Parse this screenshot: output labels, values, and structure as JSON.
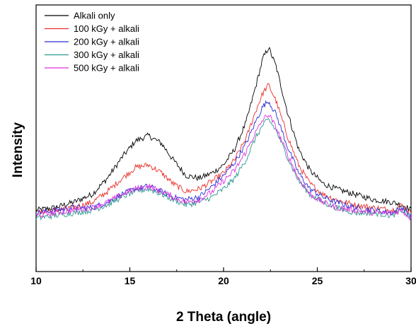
{
  "chart_data": {
    "type": "line",
    "title": "",
    "xlabel": "2 Theta (angle)",
    "ylabel": "Intensity",
    "xlim": [
      10,
      30
    ],
    "ylim": [
      0,
      100
    ],
    "x_ticks": [
      "10",
      "15",
      "20",
      "25",
      "30"
    ],
    "grid": false,
    "legend_position": "top-left",
    "series": [
      {
        "name": "Alkali only",
        "color": "#000000",
        "x": [
          10,
          11,
          12,
          13,
          13.8,
          14.6,
          15.3,
          16,
          16.7,
          17.3,
          18,
          18.7,
          19.4,
          20,
          20.6,
          21.2,
          21.7,
          22.1,
          22.4,
          22.8,
          23.4,
          24,
          24.6,
          25.3,
          26,
          27,
          28,
          29,
          29.5,
          29.8,
          30
        ],
        "y": [
          23,
          24,
          26,
          29,
          35,
          43,
          49,
          51,
          48,
          42,
          36,
          35,
          37,
          40,
          46,
          56,
          69,
          80,
          84,
          77,
          60,
          46,
          38,
          33,
          31,
          29,
          27,
          26,
          25,
          24,
          23
        ]
      },
      {
        "name": "100 kGy + alkali",
        "color": "#e8302a",
        "x": [
          10,
          11,
          12,
          13,
          13.8,
          14.6,
          15.3,
          16,
          16.7,
          17.3,
          18,
          18.7,
          19.4,
          20,
          20.6,
          21.2,
          21.7,
          22.1,
          22.4,
          22.8,
          23.4,
          24,
          24.6,
          25.3,
          26,
          27,
          28,
          29,
          29.5,
          29.8,
          30
        ],
        "y": [
          22,
          23,
          24,
          26,
          30,
          35,
          39,
          40,
          37,
          33,
          30,
          31,
          34,
          37,
          42,
          50,
          60,
          67,
          70,
          64,
          51,
          40,
          33,
          29,
          27,
          25,
          24,
          23,
          25,
          23,
          22
        ]
      },
      {
        "name": "200 kGy + alkali",
        "color": "#2b2bd6",
        "x": [
          10,
          11,
          12,
          13,
          13.8,
          14.6,
          15.3,
          16,
          16.7,
          17.3,
          18,
          18.7,
          19.4,
          20,
          20.6,
          21.2,
          21.7,
          22.1,
          22.4,
          22.8,
          23.4,
          24,
          24.6,
          25.3,
          26,
          27,
          28,
          29,
          29.5,
          29.8,
          30
        ],
        "y": [
          22,
          23,
          24,
          24,
          26,
          29,
          31,
          32,
          30,
          28,
          27,
          28,
          32,
          36,
          41,
          48,
          56,
          62,
          64,
          59,
          47,
          37,
          31,
          28,
          26,
          24,
          23,
          22,
          24,
          22,
          21
        ]
      },
      {
        "name": "300 kGy + alkali",
        "color": "#2a9a8e",
        "x": [
          10,
          11,
          12,
          13,
          13.8,
          14.6,
          15.3,
          16,
          16.7,
          17.3,
          18,
          18.7,
          19.4,
          20,
          20.6,
          21.2,
          21.7,
          22.1,
          22.4,
          22.8,
          23.4,
          24,
          24.6,
          25.3,
          26,
          27,
          28,
          29,
          29.5,
          29.8,
          30
        ],
        "y": [
          20,
          21,
          22,
          23,
          25,
          28,
          30,
          31,
          29,
          27,
          25,
          26,
          28,
          31,
          35,
          42,
          50,
          55,
          57,
          53,
          43,
          34,
          29,
          26,
          24,
          22,
          22,
          21,
          23,
          21,
          20
        ]
      },
      {
        "name": "500 kGy + alkali",
        "color": "#e030e0",
        "x": [
          10,
          11,
          12,
          13,
          13.8,
          14.6,
          15.3,
          16,
          16.7,
          17.3,
          18,
          18.7,
          19.4,
          20,
          20.6,
          21.2,
          21.7,
          22.1,
          22.4,
          22.8,
          23.4,
          24,
          24.6,
          25.3,
          26,
          27,
          28,
          29,
          29.5,
          29.8,
          30
        ],
        "y": [
          21,
          22,
          23,
          24,
          26,
          29,
          31,
          32,
          30,
          28,
          26,
          27,
          30,
          34,
          38,
          45,
          52,
          57,
          59,
          54,
          44,
          35,
          29,
          26,
          24,
          23,
          22,
          22,
          23,
          21,
          20
        ]
      }
    ]
  }
}
